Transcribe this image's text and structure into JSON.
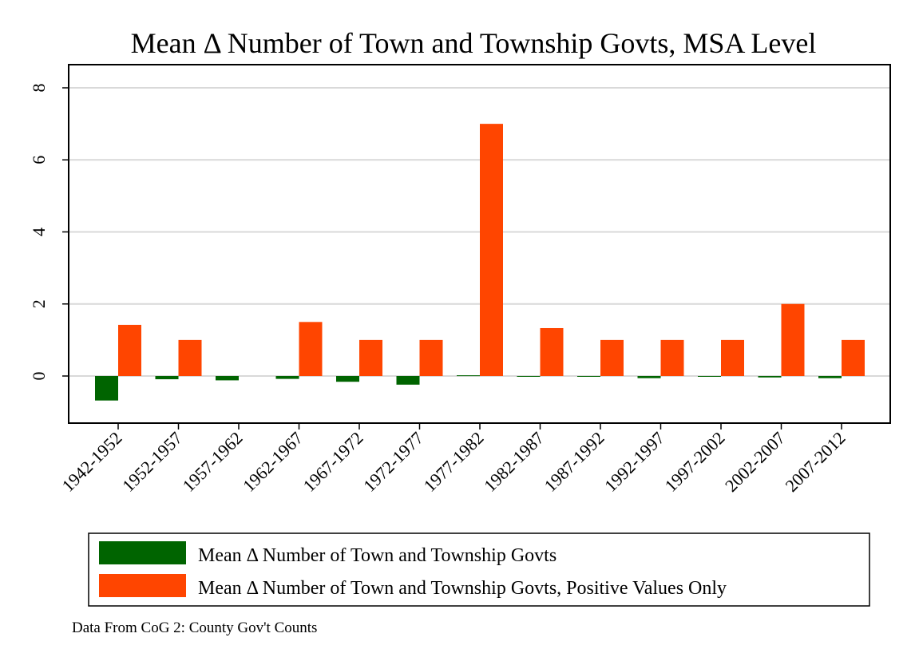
{
  "chart_data": {
    "type": "bar",
    "title": "Mean Δ Number of Town and Township Govts, MSA Level",
    "xlabel": "",
    "ylabel": "",
    "categories": [
      "1942-1952",
      "1952-1957",
      "1957-1962",
      "1962-1967",
      "1967-1972",
      "1972-1977",
      "1977-1982",
      "1982-1987",
      "1987-1992",
      "1992-1997",
      "1997-2002",
      "2002-2007",
      "2007-2012"
    ],
    "series": [
      {
        "name": "Mean Δ Number of Town and Township Govts",
        "color": "#006400",
        "values": [
          -0.68,
          -0.09,
          -0.12,
          -0.08,
          -0.16,
          -0.24,
          0.02,
          -0.02,
          -0.02,
          -0.06,
          -0.02,
          -0.04,
          -0.06
        ]
      },
      {
        "name": "Mean Δ Number of Town and Township Govts, Positive Values Only",
        "color": "#FF4500",
        "values": [
          1.42,
          1.0,
          null,
          1.5,
          1.0,
          1.0,
          7.0,
          1.33,
          1.0,
          1.0,
          1.0,
          2.0,
          1.0
        ]
      }
    ],
    "ylim": [
      -1.3,
      8.6
    ],
    "yticks": [
      0,
      2,
      4,
      6,
      8
    ],
    "grid": true,
    "legend_position": "bottom",
    "note": "Data From CoG 2: County Gov't Counts"
  }
}
